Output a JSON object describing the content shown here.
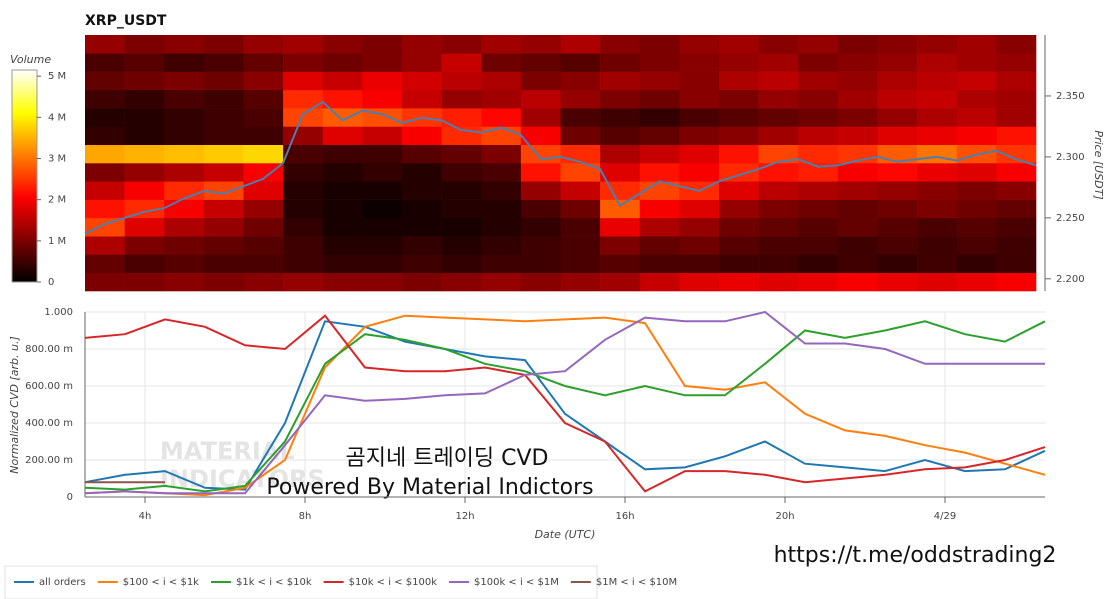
{
  "chart_data": [
    {
      "type": "heatmap",
      "title": "XRP_USDT",
      "ylabel": "Price [USDT]",
      "colorbar_label": "Volume",
      "xlim": [
        2.5,
        26.5
      ],
      "ylim": [
        2.19,
        2.4
      ],
      "x_bins": [
        2.5,
        3.5,
        4.5,
        5.5,
        6.5,
        7.5,
        8.5,
        9.5,
        10.5,
        11.5,
        12.5,
        13.5,
        14.5,
        15.5,
        16.5,
        17.5,
        18.5,
        19.5,
        20.5,
        21.5,
        22.5,
        23.5,
        24.5,
        25.5,
        26.5
      ],
      "y_bins": [
        2.19,
        2.205,
        2.22,
        2.235,
        2.25,
        2.265,
        2.28,
        2.295,
        2.31,
        2.325,
        2.34,
        2.355,
        2.37,
        2.385,
        2.4
      ],
      "z": [
        [
          1.0,
          1.0,
          1.1,
          1.0,
          1.1,
          1.2,
          1.1,
          1.1,
          1.0,
          1.1,
          1.2,
          1.1,
          1.2,
          1.3,
          1.6,
          1.8,
          1.9,
          1.8,
          1.9,
          2.0,
          1.9,
          1.8,
          1.9,
          2.0
        ],
        [
          0.8,
          0.6,
          0.7,
          0.6,
          0.6,
          0.5,
          0.4,
          0.4,
          0.5,
          0.4,
          0.5,
          0.5,
          0.6,
          0.7,
          0.6,
          0.6,
          0.5,
          0.5,
          0.4,
          0.5,
          0.4,
          0.5,
          0.4,
          0.5
        ],
        [
          1.4,
          1.0,
          0.9,
          0.8,
          0.7,
          0.5,
          0.3,
          0.3,
          0.4,
          0.3,
          0.4,
          0.5,
          0.6,
          1.0,
          0.8,
          0.9,
          0.7,
          0.6,
          0.6,
          0.5,
          0.6,
          0.5,
          0.6,
          0.5
        ],
        [
          2.6,
          1.8,
          1.4,
          1.2,
          0.9,
          0.4,
          0.2,
          0.2,
          0.2,
          0.2,
          0.3,
          0.4,
          0.6,
          1.9,
          1.4,
          1.2,
          0.9,
          0.8,
          0.7,
          0.8,
          0.7,
          0.6,
          0.7,
          0.6
        ],
        [
          2.2,
          2.4,
          2.0,
          1.6,
          1.2,
          0.3,
          0.2,
          0.1,
          0.2,
          0.3,
          0.3,
          0.6,
          0.9,
          2.8,
          2.0,
          1.8,
          1.2,
          1.0,
          0.9,
          0.8,
          0.9,
          1.0,
          0.9,
          0.8
        ],
        [
          1.6,
          2.0,
          2.4,
          2.6,
          1.8,
          0.3,
          0.2,
          0.2,
          0.3,
          0.3,
          0.4,
          1.2,
          1.6,
          2.4,
          2.6,
          2.4,
          1.8,
          1.5,
          1.4,
          1.3,
          1.2,
          1.1,
          1.0,
          1.1
        ],
        [
          1.0,
          1.2,
          1.4,
          1.6,
          2.0,
          0.4,
          0.3,
          0.4,
          0.3,
          0.5,
          0.6,
          2.2,
          2.6,
          1.8,
          2.2,
          2.0,
          2.4,
          2.2,
          2.3,
          2.0,
          2.1,
          1.9,
          1.8,
          2.0
        ],
        [
          3.4,
          3.5,
          3.6,
          3.7,
          3.8,
          0.6,
          0.5,
          0.5,
          0.7,
          0.8,
          1.0,
          2.6,
          2.4,
          1.4,
          1.6,
          1.8,
          2.2,
          2.6,
          2.4,
          2.5,
          2.8,
          3.0,
          2.7,
          2.5
        ],
        [
          0.4,
          0.3,
          0.4,
          0.5,
          0.5,
          1.2,
          1.8,
          1.6,
          2.0,
          2.4,
          2.6,
          2.0,
          0.9,
          0.7,
          0.8,
          1.0,
          1.1,
          1.3,
          1.5,
          1.6,
          1.8,
          1.9,
          2.0,
          2.2
        ],
        [
          0.3,
          0.3,
          0.4,
          0.5,
          0.6,
          2.6,
          2.8,
          2.7,
          2.5,
          2.3,
          2.1,
          1.3,
          0.6,
          0.5,
          0.4,
          0.6,
          0.7,
          0.8,
          0.9,
          1.0,
          1.2,
          1.4,
          1.5,
          1.3
        ],
        [
          0.5,
          0.4,
          0.6,
          0.5,
          0.7,
          2.4,
          2.2,
          2.0,
          1.6,
          1.2,
          1.3,
          1.5,
          1.2,
          1.0,
          0.9,
          1.1,
          1.0,
          1.2,
          1.1,
          1.3,
          1.5,
          1.6,
          1.4,
          1.3
        ],
        [
          0.8,
          0.9,
          1.0,
          0.9,
          1.1,
          1.8,
          1.6,
          1.9,
          1.7,
          1.5,
          1.4,
          1.0,
          1.1,
          1.3,
          1.2,
          1.1,
          1.4,
          1.5,
          1.3,
          1.2,
          1.4,
          1.5,
          1.6,
          1.4
        ],
        [
          0.6,
          0.7,
          0.5,
          0.6,
          0.8,
          1.0,
          0.9,
          1.0,
          1.2,
          1.6,
          0.9,
          0.8,
          0.7,
          0.9,
          1.0,
          1.1,
          1.2,
          1.3,
          1.0,
          1.1,
          1.2,
          1.4,
          1.3,
          1.2
        ],
        [
          1.2,
          1.0,
          1.1,
          1.0,
          1.2,
          1.3,
          1.1,
          1.0,
          1.2,
          1.1,
          1.3,
          1.2,
          1.4,
          1.1,
          1.0,
          1.2,
          1.3,
          1.1,
          1.2,
          1.0,
          1.1,
          1.2,
          1.3,
          1.1
        ]
      ],
      "zlim": [
        0,
        5.15
      ],
      "zticks": [
        0,
        {
          "value": 1,
          "label": "1 M"
        },
        {
          "value": 2,
          "label": "2 M"
        },
        {
          "value": 3,
          "label": "3 M"
        },
        {
          "value": 4,
          "label": "4 M"
        },
        {
          "value": 5,
          "label": "5 M"
        }
      ],
      "yticks": [
        {
          "value": 2.2,
          "label": "2.200"
        },
        {
          "value": 2.25,
          "label": "2.250"
        },
        {
          "value": 2.3,
          "label": "2.300"
        },
        {
          "value": 2.35,
          "label": "2.350"
        }
      ],
      "price": {
        "color": "#4a7fb0",
        "x": [
          2.5,
          3,
          3.5,
          4,
          4.5,
          5,
          5.5,
          6,
          6.5,
          7,
          7.5,
          8,
          8.5,
          9,
          9.5,
          10,
          10.5,
          11,
          11.5,
          12,
          12.5,
          13,
          13.5,
          14,
          14.5,
          15,
          15.5,
          16,
          16.5,
          17,
          17.5,
          18,
          18.5,
          19,
          19.5,
          20,
          20.5,
          21,
          21.5,
          22,
          22.5,
          23,
          23.5,
          24,
          24.5,
          25,
          25.5,
          26,
          26.5
        ],
        "values": [
          2.237,
          2.245,
          2.25,
          2.255,
          2.258,
          2.266,
          2.272,
          2.27,
          2.276,
          2.282,
          2.295,
          2.335,
          2.345,
          2.33,
          2.338,
          2.335,
          2.328,
          2.332,
          2.33,
          2.322,
          2.32,
          2.324,
          2.318,
          2.298,
          2.3,
          2.296,
          2.29,
          2.26,
          2.27,
          2.28,
          2.276,
          2.272,
          2.28,
          2.285,
          2.29,
          2.296,
          2.298,
          2.292,
          2.293,
          2.297,
          2.3,
          2.296,
          2.298,
          2.3,
          2.297,
          2.302,
          2.305,
          2.298,
          2.293
        ]
      }
    },
    {
      "type": "line",
      "xlabel": "Date (UTC)",
      "ylabel": "Normalized CVD [arb. u.]",
      "grid": true,
      "xlim": [
        2.5,
        26.5
      ],
      "ylim": [
        0,
        1
      ],
      "xticks": [
        {
          "value": 4,
          "label": "4h"
        },
        {
          "value": 8,
          "label": "8h"
        },
        {
          "value": 12,
          "label": "12h"
        },
        {
          "value": 16,
          "label": "16h"
        },
        {
          "value": 20,
          "label": "20h"
        },
        {
          "value": 24,
          "label": "4/29"
        }
      ],
      "yticks": [
        0,
        {
          "value": 0.2,
          "label": "200.00 m"
        },
        {
          "value": 0.4,
          "label": "400.00 m"
        },
        {
          "value": 0.6,
          "label": "600.00 m"
        },
        {
          "value": 0.8,
          "label": "800.00 m"
        },
        {
          "value": 1,
          "label": "1.000"
        }
      ],
      "x": [
        2.5,
        3.5,
        4.5,
        5.5,
        6.5,
        7.5,
        8.5,
        9.5,
        10.5,
        11.5,
        12.5,
        13.5,
        14.5,
        15.5,
        16.5,
        17.5,
        18.5,
        19.5,
        20.5,
        21.5,
        22.5,
        23.5,
        24.5,
        25.5,
        26.5
      ],
      "series": [
        {
          "name": "all orders",
          "color": "#1f77b4",
          "values": [
            0.08,
            0.12,
            0.14,
            0.05,
            0.04,
            0.4,
            0.95,
            0.92,
            0.84,
            0.8,
            0.76,
            0.74,
            0.45,
            0.3,
            0.15,
            0.16,
            0.22,
            0.3,
            0.18,
            0.16,
            0.14,
            0.2,
            0.14,
            0.15,
            0.25
          ]
        },
        {
          "name": "$100 < i < $1k",
          "color": "#ff7f0e",
          "values": [
            0.02,
            0.03,
            0.02,
            0.01,
            0.05,
            0.2,
            0.7,
            0.92,
            0.98,
            0.97,
            0.96,
            0.95,
            0.96,
            0.97,
            0.94,
            0.6,
            0.58,
            0.62,
            0.45,
            0.36,
            0.33,
            0.28,
            0.24,
            0.18,
            0.12
          ]
        },
        {
          "name": "$1k < i < $10k",
          "color": "#2ca02c",
          "values": [
            0.05,
            0.04,
            0.06,
            0.03,
            0.06,
            0.3,
            0.72,
            0.88,
            0.85,
            0.8,
            0.72,
            0.68,
            0.6,
            0.55,
            0.6,
            0.55,
            0.55,
            0.72,
            0.9,
            0.86,
            0.9,
            0.95,
            0.88,
            0.84,
            0.95
          ]
        },
        {
          "name": "$10k < i < $100k",
          "color": "#d62728",
          "values": [
            0.86,
            0.88,
            0.96,
            0.92,
            0.82,
            0.8,
            0.98,
            0.7,
            0.68,
            0.68,
            0.7,
            0.66,
            0.4,
            0.3,
            0.03,
            0.14,
            0.14,
            0.12,
            0.08,
            0.1,
            0.12,
            0.15,
            0.16,
            0.2,
            0.27
          ]
        },
        {
          "name": "$100k < i < $1M",
          "color": "#9467bd",
          "values": [
            0.02,
            0.03,
            0.02,
            0.02,
            0.02,
            0.28,
            0.55,
            0.52,
            0.53,
            0.55,
            0.56,
            0.66,
            0.68,
            0.85,
            0.97,
            0.95,
            0.95,
            1,
            0.83,
            0.83,
            0.8,
            0.72,
            0.72,
            0.72,
            0.72
          ]
        },
        {
          "name": "$1M < i < $10M",
          "color": "#8c564b",
          "values": [
            0.08,
            0.08,
            0.08,
            null,
            null,
            null,
            null,
            null,
            null,
            null,
            null,
            null,
            null,
            null,
            null,
            null,
            null,
            null,
            null,
            null,
            null,
            null,
            null,
            null,
            null
          ]
        }
      ]
    }
  ],
  "watermark": [
    "MATERIAL",
    "INDICATORS"
  ],
  "overlay_title": "곰지네 트레이딩 CVD",
  "overlay_subtitle": "Powered By Material Indictors",
  "url": "https://t.me/oddstrading2"
}
